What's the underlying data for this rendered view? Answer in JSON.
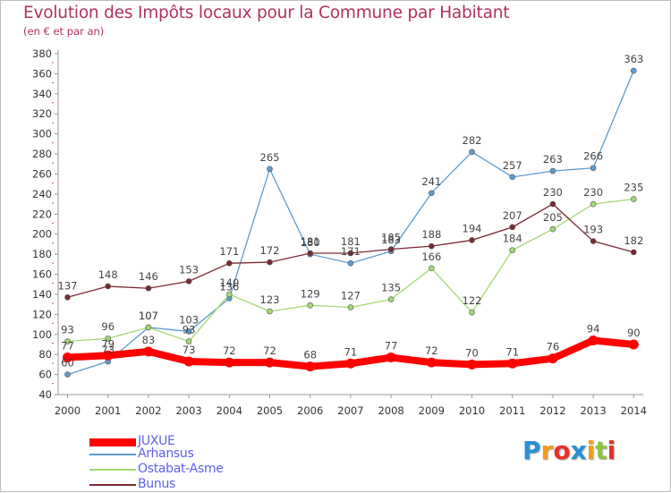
{
  "title": "Evolution des Impôts locaux pour la Commune par Habitant",
  "subtitle": "(en € et par an)",
  "logo": {
    "text": "Proxiti",
    "letters": [
      {
        "char": "P",
        "color": "#2a8fd6"
      },
      {
        "char": "r",
        "color": "#f39a1e"
      },
      {
        "char": "o",
        "color": "#e8302c"
      },
      {
        "char": "x",
        "color": "#2a8fd6"
      },
      {
        "char": "i",
        "color": "#f39a1e"
      },
      {
        "char": "t",
        "color": "#8cc63f"
      },
      {
        "char": "i",
        "color": "#e8302c"
      }
    ]
  },
  "chart_data": {
    "type": "line",
    "title": "Evolution des Impôts locaux pour la Commune par Habitant",
    "subtitle": "(en € et par an)",
    "x": [
      2000,
      2001,
      2002,
      2003,
      2004,
      2005,
      2006,
      2007,
      2008,
      2009,
      2010,
      2011,
      2012,
      2013,
      2014
    ],
    "ylim": [
      40,
      380
    ],
    "yticks": [
      40,
      60,
      80,
      100,
      120,
      140,
      160,
      180,
      200,
      220,
      240,
      260,
      280,
      300,
      320,
      340,
      360,
      380
    ],
    "grid": false,
    "legend_position": "bottom-left",
    "series": [
      {
        "name": "JUXUE",
        "color": "#ff0000",
        "values": [
          77,
          79,
          83,
          73,
          72,
          72,
          68,
          71,
          77,
          72,
          70,
          71,
          76,
          94,
          90
        ]
      },
      {
        "name": "Arhansus",
        "color": "#5d9ccf",
        "values": [
          60,
          73,
          107,
          103,
          136,
          265,
          180,
          171,
          183,
          241,
          282,
          257,
          263,
          266,
          363
        ]
      },
      {
        "name": "Ostabat-Asme",
        "color": "#a3d972",
        "values": [
          93,
          96,
          107,
          93,
          140,
          123,
          129,
          127,
          135,
          166,
          122,
          184,
          205,
          230,
          235
        ]
      },
      {
        "name": "Bunus",
        "color": "#7a2a33",
        "values": [
          137,
          148,
          146,
          153,
          171,
          172,
          181,
          181,
          185,
          188,
          194,
          207,
          230,
          193,
          182
        ]
      }
    ]
  }
}
